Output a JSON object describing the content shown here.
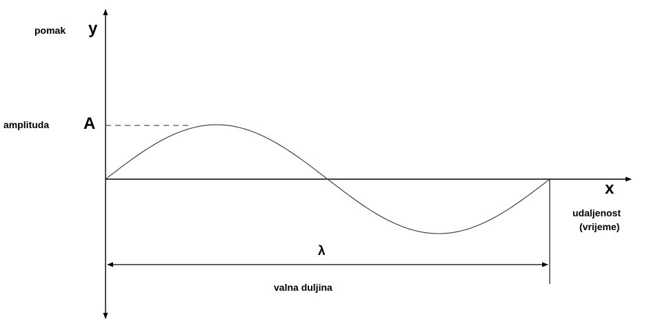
{
  "labels": {
    "y_axis_name": "pomak",
    "y_axis_symbol": "y",
    "amplitude_name": "amplituda",
    "amplitude_symbol": "A",
    "x_axis_symbol": "x",
    "x_axis_name_line1": "udaljenost",
    "x_axis_name_line2": "(vrijeme)",
    "wavelength_symbol": "λ",
    "wavelength_name": "valna duljina"
  },
  "colors": {
    "line": "#000000",
    "curve": "#333333",
    "dashed": "#555555"
  }
}
